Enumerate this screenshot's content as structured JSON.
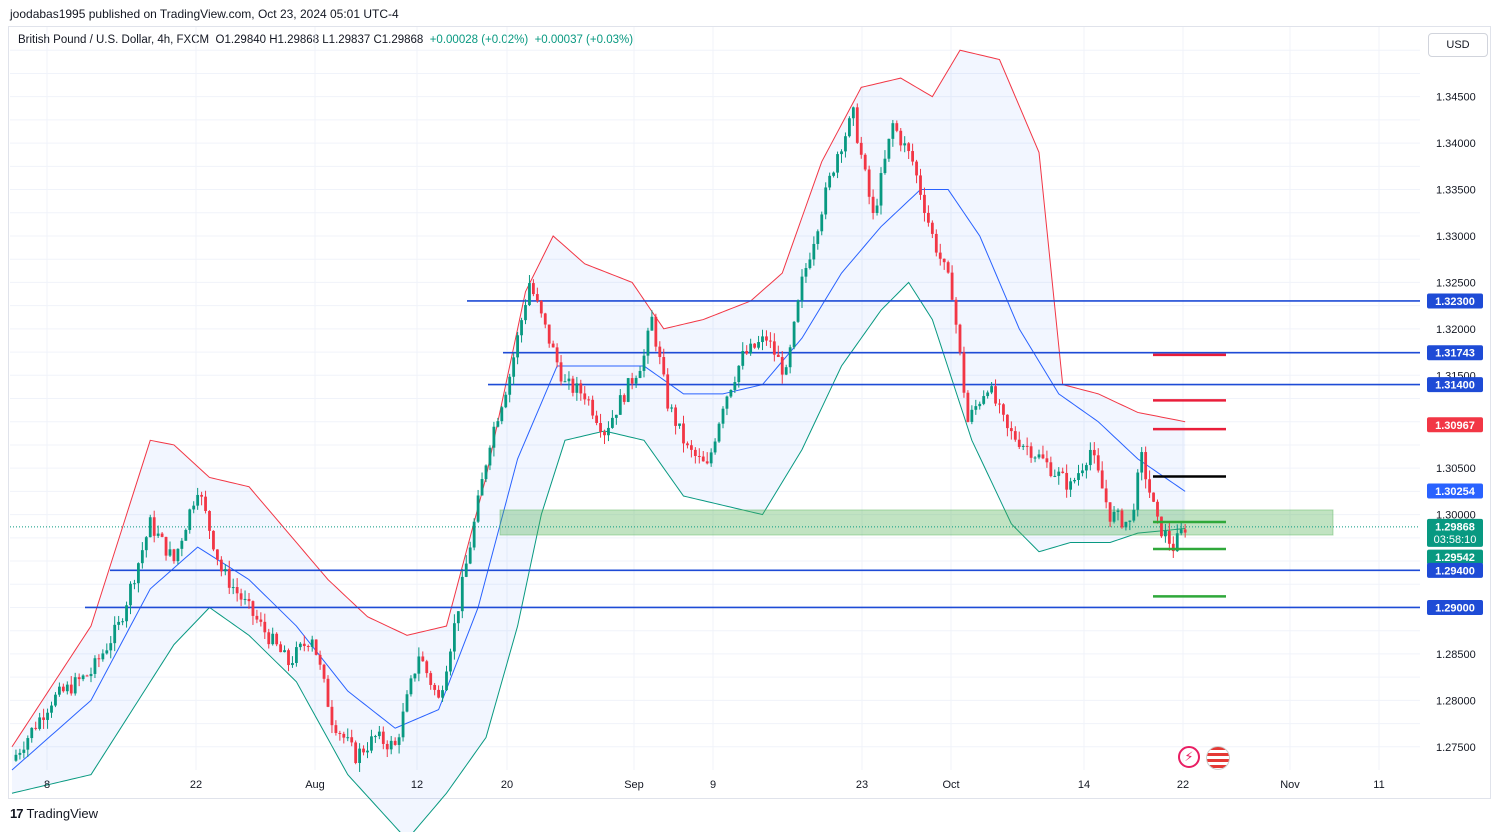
{
  "header": {
    "published": "joodabas1995 published on TradingView.com, Oct 23, 2024 05:01 UTC-4",
    "symbol": "British Pound / U.S. Dollar, 4h, FXCM",
    "ohlc": "O1.29840  H1.29868  L1.29837  C1.29868",
    "change1": "+0.00028 (+0.02%)",
    "change2": "+0.00037 (+0.03%)",
    "currency": "USD"
  },
  "footer": {
    "brand": "TradingView"
  },
  "icons": [
    "lightning-icon",
    "us-flag-icon"
  ],
  "colors": {
    "up": "#089981",
    "down": "#f23645",
    "upper_band": "#f23645",
    "basis": "#2962ff",
    "lower_band": "#089981",
    "level": "#1e4bd6"
  },
  "chart_data": {
    "type": "candlestick",
    "timeframe": "4h",
    "ylim": [
      1.2725,
      1.3525
    ],
    "x_ticks": [
      "8",
      "22",
      "Aug",
      "12",
      "20",
      "Sep",
      "9",
      "23",
      "Oct",
      "14",
      "22",
      "Nov",
      "11"
    ],
    "y_ticks": [
      "1.34500",
      "1.34000",
      "1.33500",
      "1.33000",
      "1.32500",
      "1.32000",
      "1.31500",
      "1.30500",
      "1.30000",
      "1.28500",
      "1.28000",
      "1.27500"
    ],
    "price_badges": [
      {
        "label": "1.32300",
        "value": 1.323,
        "color": "#1e4bd6"
      },
      {
        "label": "1.31743",
        "value": 1.31743,
        "color": "#1e4bd6"
      },
      {
        "label": "1.31400",
        "value": 1.314,
        "color": "#1e4bd6"
      },
      {
        "label": "1.30967",
        "value": 1.30967,
        "color": "#f23645"
      },
      {
        "label": "1.30254",
        "value": 1.30254,
        "color": "#2962ff"
      },
      {
        "label": "1.29868",
        "sub": "03:58:10",
        "value": 1.29868,
        "color": "#089981"
      },
      {
        "label": "1.29542",
        "value": 1.29542,
        "color": "#089981"
      },
      {
        "label": "1.29400",
        "value": 1.294,
        "color": "#1e4bd6"
      },
      {
        "label": "1.29000",
        "value": 1.29,
        "color": "#1e4bd6"
      }
    ],
    "horizontal_levels": [
      1.323,
      1.31743,
      1.314,
      1.294,
      1.29
    ],
    "resistance_zone": [
      1.2978,
      1.3005
    ],
    "target_lines": {
      "red": [
        1.3172,
        1.3123,
        1.3092
      ],
      "black": [
        1.3041
      ],
      "green": [
        1.2992,
        1.2963,
        1.2912
      ]
    },
    "price_path": [
      [
        0,
        1.2735
      ],
      [
        10,
        1.28
      ],
      [
        20,
        1.283
      ],
      [
        27,
        1.288
      ],
      [
        35,
        1.299
      ],
      [
        41,
        1.295
      ],
      [
        47,
        1.303
      ],
      [
        53,
        1.294
      ],
      [
        58,
        1.291
      ],
      [
        63,
        1.288
      ],
      [
        70,
        1.284
      ],
      [
        76,
        1.287
      ],
      [
        81,
        1.278
      ],
      [
        87,
        1.274
      ],
      [
        92,
        1.276
      ],
      [
        97,
        1.275
      ],
      [
        103,
        1.285
      ],
      [
        108,
        1.28
      ],
      [
        112,
        1.288
      ],
      [
        117,
        1.299
      ],
      [
        121,
        1.308
      ],
      [
        126,
        1.315
      ],
      [
        131,
        1.325
      ],
      [
        135,
        1.32
      ],
      [
        140,
        1.314
      ],
      [
        145,
        1.313
      ],
      [
        150,
        1.309
      ],
      [
        155,
        1.313
      ],
      [
        160,
        1.317
      ],
      [
        162,
        1.321
      ],
      [
        166,
        1.312
      ],
      [
        171,
        1.307
      ],
      [
        176,
        1.305
      ],
      [
        180,
        1.312
      ],
      [
        185,
        1.317
      ],
      [
        191,
        1.319
      ],
      [
        196,
        1.315
      ],
      [
        200,
        1.325
      ],
      [
        205,
        1.333
      ],
      [
        209,
        1.339
      ],
      [
        213,
        1.343
      ],
      [
        218,
        1.332
      ],
      [
        223,
        1.342
      ],
      [
        228,
        1.338
      ],
      [
        233,
        1.33
      ],
      [
        238,
        1.324
      ],
      [
        242,
        1.31
      ],
      [
        247,
        1.314
      ],
      [
        252,
        1.309
      ],
      [
        258,
        1.307
      ],
      [
        263,
        1.305
      ],
      [
        268,
        1.303
      ],
      [
        273,
        1.307
      ],
      [
        278,
        1.3
      ],
      [
        283,
        1.299
      ],
      [
        286,
        1.306
      ],
      [
        290,
        1.299
      ],
      [
        294,
        1.2965
      ],
      [
        297,
        1.2987
      ]
    ],
    "bands_upper": [
      [
        0,
        1.275
      ],
      [
        20,
        1.288
      ],
      [
        35,
        1.308
      ],
      [
        41,
        1.3075
      ],
      [
        50,
        1.304
      ],
      [
        60,
        1.303
      ],
      [
        72,
        1.297
      ],
      [
        80,
        1.293
      ],
      [
        90,
        1.289
      ],
      [
        100,
        1.287
      ],
      [
        110,
        1.288
      ],
      [
        120,
        1.304
      ],
      [
        130,
        1.324
      ],
      [
        137,
        1.33
      ],
      [
        145,
        1.327
      ],
      [
        157,
        1.325
      ],
      [
        165,
        1.32
      ],
      [
        175,
        1.321
      ],
      [
        187,
        1.323
      ],
      [
        195,
        1.326
      ],
      [
        205,
        1.338
      ],
      [
        215,
        1.346
      ],
      [
        225,
        1.347
      ],
      [
        233,
        1.345
      ],
      [
        240,
        1.35
      ],
      [
        250,
        1.349
      ],
      [
        260,
        1.339
      ],
      [
        266,
        1.314
      ],
      [
        275,
        1.313
      ],
      [
        285,
        1.311
      ],
      [
        297,
        1.31
      ]
    ],
    "bands_basis": [
      [
        0,
        1.2725
      ],
      [
        20,
        1.28
      ],
      [
        35,
        1.292
      ],
      [
        47,
        1.2965
      ],
      [
        60,
        1.293
      ],
      [
        72,
        1.288
      ],
      [
        85,
        1.281
      ],
      [
        97,
        1.277
      ],
      [
        108,
        1.279
      ],
      [
        118,
        1.29
      ],
      [
        128,
        1.306
      ],
      [
        138,
        1.316
      ],
      [
        150,
        1.316
      ],
      [
        160,
        1.316
      ],
      [
        170,
        1.313
      ],
      [
        180,
        1.313
      ],
      [
        190,
        1.314
      ],
      [
        200,
        1.319
      ],
      [
        210,
        1.326
      ],
      [
        220,
        1.331
      ],
      [
        230,
        1.335
      ],
      [
        237,
        1.335
      ],
      [
        245,
        1.33
      ],
      [
        255,
        1.32
      ],
      [
        265,
        1.313
      ],
      [
        275,
        1.31
      ],
      [
        285,
        1.306
      ],
      [
        297,
        1.3025
      ]
    ],
    "bands_lower": [
      [
        0,
        1.27
      ],
      [
        20,
        1.272
      ],
      [
        41,
        1.286
      ],
      [
        50,
        1.29
      ],
      [
        60,
        1.287
      ],
      [
        72,
        1.282
      ],
      [
        85,
        1.272
      ],
      [
        100,
        1.265
      ],
      [
        110,
        1.27
      ],
      [
        120,
        1.276
      ],
      [
        128,
        1.288
      ],
      [
        134,
        1.3
      ],
      [
        140,
        1.308
      ],
      [
        150,
        1.309
      ],
      [
        160,
        1.308
      ],
      [
        170,
        1.302
      ],
      [
        180,
        1.301
      ],
      [
        190,
        1.3
      ],
      [
        200,
        1.307
      ],
      [
        210,
        1.316
      ],
      [
        220,
        1.322
      ],
      [
        227,
        1.325
      ],
      [
        233,
        1.321
      ],
      [
        243,
        1.308
      ],
      [
        253,
        1.299
      ],
      [
        260,
        1.296
      ],
      [
        268,
        1.297
      ],
      [
        278,
        1.297
      ],
      [
        285,
        1.298
      ],
      [
        297,
        1.2985
      ]
    ]
  }
}
